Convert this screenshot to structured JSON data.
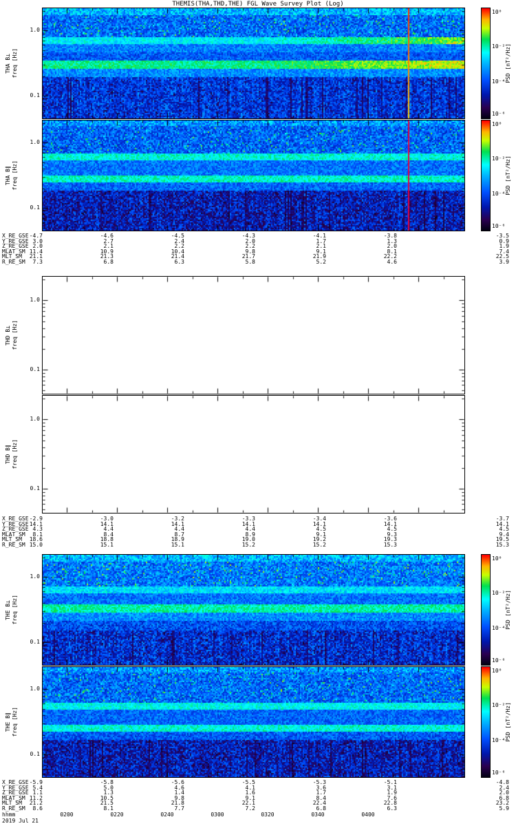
{
  "title": "THEMIS(THA,THD,THE) FGL Wave Survey Plot (Log)",
  "date_label": "2019 Jul 21",
  "time_axis": {
    "unit_label": "hhmm",
    "ticks": [
      "0200",
      "0220",
      "0240",
      "0300",
      "0320",
      "0340",
      "0400"
    ]
  },
  "colors": {
    "frame": "#000000",
    "text": "#000000",
    "event_line_top": "#ff2a00",
    "event_line_bottom": "#ffd400"
  },
  "chart_data": {
    "type": "heatmap",
    "title": "THEMIS(THA,THD,THE) FGL Wave Survey Plot (Log)",
    "x_unit": "hhmm",
    "x_ticks": [
      "0200",
      "0220",
      "0240",
      "0300",
      "0320",
      "0340",
      "0400"
    ],
    "date": "2019 Jul 21",
    "ylabel": "freq [Hz]",
    "ylog_range": [
      0.045,
      2.2
    ],
    "colormap": [
      [
        0.0,
        "#000010"
      ],
      [
        0.1,
        "#2a0050"
      ],
      [
        0.22,
        "#0018b0"
      ],
      [
        0.35,
        "#0050ff"
      ],
      [
        0.5,
        "#00b4ff"
      ],
      [
        0.6,
        "#00ffff"
      ],
      [
        0.72,
        "#00e050"
      ],
      [
        0.82,
        "#c8ff00"
      ],
      [
        0.9,
        "#ffb400"
      ],
      [
        1.0,
        "#ff0000"
      ]
    ],
    "panels": [
      {
        "id": "tha-bperp",
        "label": "THA B⊥",
        "ylabel": "freq [Hz]",
        "yticks": [
          "1.0",
          "0.1"
        ],
        "empty": false,
        "seed": 101,
        "colorbar": {
          "label": "PSD [nT²/Hz]",
          "ticks": [
            "10⁰",
            "10⁻²",
            "10⁻⁴",
            "10⁻⁶"
          ]
        },
        "base": [
          {
            "from": 0.0,
            "to": 0.06,
            "level": 0.5,
            "noise": 0.14
          },
          {
            "from": 0.06,
            "to": 0.26,
            "level": 0.38,
            "noise": 0.13,
            "speckle": 0.06
          },
          {
            "from": 0.26,
            "to": 0.32,
            "level": 0.58,
            "noise": 0.08,
            "right_boost": 0.25
          },
          {
            "from": 0.32,
            "to": 0.4,
            "level": 0.42,
            "noise": 0.1
          },
          {
            "from": 0.4,
            "to": 0.47,
            "level": 0.36,
            "noise": 0.1
          },
          {
            "from": 0.47,
            "to": 0.55,
            "level": 0.68,
            "noise": 0.07,
            "right_boost": 0.2
          },
          {
            "from": 0.55,
            "to": 0.62,
            "level": 0.44,
            "noise": 0.1
          },
          {
            "from": 0.62,
            "to": 1.0,
            "level": 0.3,
            "noise": 0.13,
            "streaky": 1,
            "dark": 0.05
          }
        ],
        "vline": {
          "frac": 0.868,
          "color_top": "#ff2a00",
          "color_bottom": "#ffd400"
        }
      },
      {
        "id": "tha-bpar",
        "label": "THA B∥",
        "ylabel": "freq [Hz]",
        "yticks": [
          "1.0",
          "0.1"
        ],
        "empty": false,
        "seed": 202,
        "colorbar": {
          "label": "PSD [nT²/Hz]",
          "ticks": [
            "10⁰",
            "10⁻²",
            "10⁻⁴",
            "10⁻⁶"
          ]
        },
        "base": [
          {
            "from": 0.0,
            "to": 0.05,
            "level": 0.46,
            "noise": 0.14
          },
          {
            "from": 0.05,
            "to": 0.3,
            "level": 0.37,
            "noise": 0.13,
            "speckle": 0.05
          },
          {
            "from": 0.3,
            "to": 0.36,
            "level": 0.62,
            "noise": 0.08
          },
          {
            "from": 0.36,
            "to": 0.5,
            "level": 0.4,
            "noise": 0.1
          },
          {
            "from": 0.5,
            "to": 0.56,
            "level": 0.64,
            "noise": 0.07
          },
          {
            "from": 0.56,
            "to": 0.63,
            "level": 0.38,
            "noise": 0.1
          },
          {
            "from": 0.63,
            "to": 1.0,
            "level": 0.24,
            "noise": 0.14,
            "streaky": 1,
            "dark": 0.08
          }
        ],
        "vline": {
          "frac": 0.868,
          "color_top": "#e8003c",
          "color_bottom": "#e8003c"
        }
      },
      {
        "id": "thd-bperp",
        "label": "THD B⊥",
        "ylabel": "freq [Hz]",
        "yticks": [
          "1.0",
          "0.1"
        ],
        "empty": true,
        "seed": 303,
        "colorbar": null,
        "base": [],
        "vline": null
      },
      {
        "id": "thd-bpar",
        "label": "THD B∥",
        "ylabel": "freq [Hz]",
        "yticks": [
          "1.0",
          "0.1"
        ],
        "empty": true,
        "seed": 404,
        "colorbar": null,
        "base": [],
        "vline": null
      },
      {
        "id": "the-bperp",
        "label": "THE B⊥",
        "ylabel": "freq [Hz]",
        "yticks": [
          "1.0",
          "0.1"
        ],
        "empty": false,
        "seed": 505,
        "colorbar": {
          "label": "PSD [nT²/Hz]",
          "ticks": [
            "10⁰",
            "10⁻²",
            "10⁻⁴",
            "10⁻⁶"
          ]
        },
        "base": [
          {
            "from": 0.0,
            "to": 0.06,
            "level": 0.5,
            "noise": 0.14
          },
          {
            "from": 0.06,
            "to": 0.28,
            "level": 0.4,
            "noise": 0.13,
            "speckle": 0.06
          },
          {
            "from": 0.28,
            "to": 0.34,
            "level": 0.56,
            "noise": 0.09
          },
          {
            "from": 0.34,
            "to": 0.44,
            "level": 0.4,
            "noise": 0.1
          },
          {
            "from": 0.44,
            "to": 0.52,
            "level": 0.66,
            "noise": 0.07
          },
          {
            "from": 0.52,
            "to": 0.6,
            "level": 0.44,
            "noise": 0.1
          },
          {
            "from": 0.6,
            "to": 0.68,
            "level": 0.34,
            "noise": 0.12
          },
          {
            "from": 0.68,
            "to": 1.0,
            "level": 0.28,
            "noise": 0.14,
            "streaky": 1,
            "dark": 0.06
          }
        ],
        "vline": null
      },
      {
        "id": "the-bpar",
        "label": "THE B∥",
        "ylabel": "freq [Hz]",
        "yticks": [
          "1.0",
          "0.1"
        ],
        "empty": false,
        "seed": 606,
        "colorbar": {
          "label": "PSD [nT²/Hz]",
          "ticks": [
            "10⁰",
            "10⁻²",
            "10⁻⁴",
            "10⁻⁶"
          ]
        },
        "base": [
          {
            "from": 0.0,
            "to": 0.05,
            "level": 0.46,
            "noise": 0.14
          },
          {
            "from": 0.05,
            "to": 0.32,
            "level": 0.38,
            "noise": 0.13,
            "speckle": 0.05
          },
          {
            "from": 0.32,
            "to": 0.38,
            "level": 0.6,
            "noise": 0.08
          },
          {
            "from": 0.38,
            "to": 0.52,
            "level": 0.38,
            "noise": 0.1
          },
          {
            "from": 0.52,
            "to": 0.58,
            "level": 0.62,
            "noise": 0.08
          },
          {
            "from": 0.58,
            "to": 0.66,
            "level": 0.36,
            "noise": 0.11
          },
          {
            "from": 0.66,
            "to": 1.0,
            "level": 0.24,
            "noise": 0.14,
            "streaky": 1,
            "dark": 0.08
          }
        ],
        "vline": null
      }
    ],
    "ephemeris_blocks": [
      {
        "spacecraft": "THA",
        "rows": [
          {
            "label": "X_RE_GSE",
            "values": [
              "-4.7",
              "-4.6",
              "-4.5",
              "-4.3",
              "-4.1",
              "-3.8",
              "-3.5"
            ]
          },
          {
            "label": "Y_RE_GSE",
            "values": [
              "3.0",
              "2.7",
              "2.4",
              "2.0",
              "1.7",
              "1.3",
              "0.9"
            ]
          },
          {
            "label": "Z_RE_GSE",
            "values": [
              "2.0",
              "2.1",
              "2.2",
              "2.2",
              "2.1",
              "2.0",
              "1.9"
            ]
          },
          {
            "label": "MLAT_SM",
            "values": [
              "11.4",
              "10.9",
              "10.4",
              "9.8",
              "9.1",
              "8.1",
              "7.4"
            ]
          },
          {
            "label": "MLT_SM",
            "values": [
              "21.1",
              "21.3",
              "21.4",
              "21.7",
              "21.9",
              "22.2",
              "22.5"
            ]
          },
          {
            "label": "R_RE_SM",
            "values": [
              "7.3",
              "6.8",
              "6.3",
              "5.8",
              "5.2",
              "4.6",
              "3.9"
            ]
          }
        ]
      },
      {
        "spacecraft": "THD",
        "rows": [
          {
            "label": "X_RE_GSE",
            "values": [
              "-2.9",
              "-3.0",
              "-3.2",
              "-3.3",
              "-3.4",
              "-3.6",
              "-3.7"
            ]
          },
          {
            "label": "Y_RE_GSE",
            "values": [
              "14.1",
              "14.1",
              "14.1",
              "14.1",
              "14.1",
              "14.1",
              "14.1"
            ]
          },
          {
            "label": "Z_RE_GSE",
            "values": [
              "4.3",
              "4.4",
              "4.4",
              "4.4",
              "4.5",
              "4.5",
              "4.5"
            ]
          },
          {
            "label": "MLAT_SM",
            "values": [
              "8.1",
              "8.4",
              "8.7",
              "8.9",
              "9.1",
              "9.3",
              "9.4"
            ]
          },
          {
            "label": "MLT_SM",
            "values": [
              "18.6",
              "18.8",
              "18.9",
              "19.0",
              "19.2",
              "19.3",
              "19.5"
            ]
          },
          {
            "label": "R_RE_SM",
            "values": [
              "15.0",
              "15.1",
              "15.1",
              "15.2",
              "15.2",
              "15.3",
              "15.3"
            ]
          }
        ]
      },
      {
        "spacecraft": "THE",
        "rows": [
          {
            "label": "X_RE_GSE",
            "values": [
              "-5.9",
              "-5.8",
              "-5.6",
              "-5.5",
              "-5.3",
              "-5.1",
              "-4.8"
            ]
          },
          {
            "label": "Y_RE_GSE",
            "values": [
              "5.4",
              "5.0",
              "4.6",
              "4.1",
              "3.6",
              "3.1",
              "2.4"
            ]
          },
          {
            "label": "Z_RE_GSE",
            "values": [
              "1.1",
              "1.3",
              "1.4",
              "1.6",
              "1.7",
              "1.9",
              "2.0"
            ]
          },
          {
            "label": "MLAT_SM",
            "values": [
              "11.2",
              "10.5",
              "9.8",
              "9.1",
              "8.4",
              "7.6",
              "6.8"
            ]
          },
          {
            "label": "MLT_SM",
            "values": [
              "21.2",
              "21.5",
              "21.8",
              "22.1",
              "22.4",
              "22.8",
              "23.2"
            ]
          },
          {
            "label": "R_RE_SM",
            "values": [
              "8.6",
              "8.1",
              "7.7",
              "7.2",
              "6.8",
              "6.3",
              "5.9"
            ]
          }
        ]
      }
    ]
  }
}
